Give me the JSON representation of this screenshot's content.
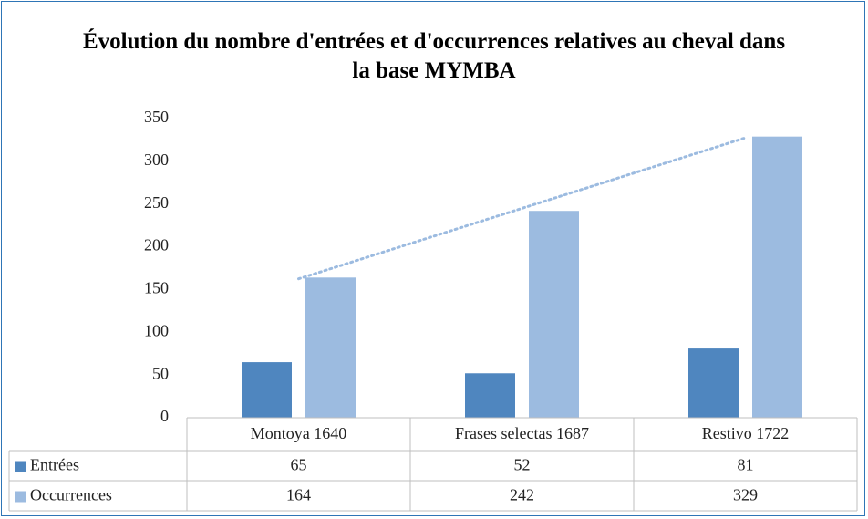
{
  "chart_data": {
    "type": "bar",
    "title": "Évolution du nombre d'entrées et d'occurrences relatives au cheval dans la base MYMBA",
    "categories": [
      "Montoya 1640",
      "Frases selectas 1687",
      "Restivo 1722"
    ],
    "series": [
      {
        "name": "Entrées",
        "color": "#4f86bf",
        "values": [
          65,
          52,
          81
        ]
      },
      {
        "name": "Occurrences",
        "color": "#9cbbe0",
        "values": [
          164,
          242,
          329
        ],
        "trendline": "linear"
      }
    ],
    "ylim": [
      0,
      350
    ],
    "yticks": [
      0,
      50,
      100,
      150,
      200,
      250,
      300,
      350
    ],
    "data_table": true
  }
}
